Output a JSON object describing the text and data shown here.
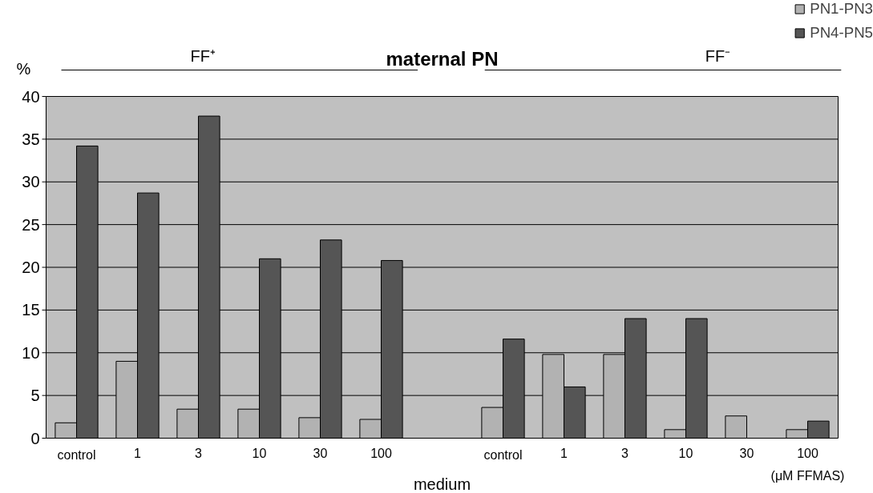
{
  "chart_data": {
    "type": "bar",
    "title": "maternal PN",
    "xlabel": "medium",
    "ylabel": "%",
    "categories": [
      "control",
      "1",
      "3",
      "10",
      "30",
      "100",
      null,
      "control",
      "1",
      "3",
      "10",
      "30",
      "100"
    ],
    "series": [
      {
        "name": "PN1-PN3",
        "color": "#b2b2b2",
        "values": [
          1.8,
          9.0,
          3.4,
          3.4,
          2.4,
          2.2,
          null,
          3.6,
          9.8,
          9.8,
          1.0,
          2.6,
          1.0
        ]
      },
      {
        "name": "PN4-PN5",
        "color": "#555555",
        "values": [
          34.2,
          28.7,
          37.7,
          21.0,
          23.2,
          20.8,
          null,
          11.6,
          6.0,
          14.0,
          14.0,
          null,
          2.0
        ]
      }
    ],
    "ylim": [
      0,
      40
    ],
    "yticks": [
      0,
      5,
      10,
      15,
      20,
      25,
      30,
      35,
      40
    ],
    "grid": "y",
    "legend": "top right",
    "annotations": [
      "FF⁺",
      "FF⁻",
      "(μM FFMAS)"
    ]
  }
}
